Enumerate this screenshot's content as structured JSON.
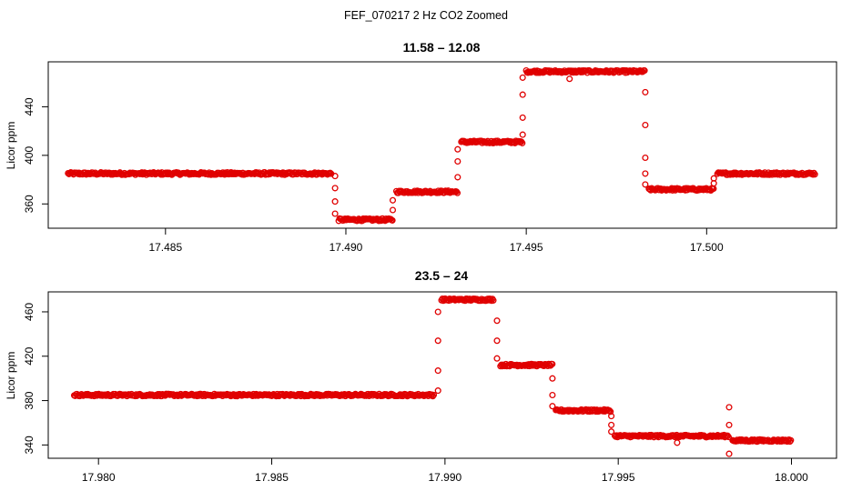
{
  "figure": {
    "title": "FEF_070217  2 Hz CO2 Zoomed"
  },
  "chart_data": [
    {
      "type": "scatter",
      "title": "11.58 – 12.08",
      "xlabel": "",
      "ylabel": "Licor ppm",
      "xlim": [
        17.48175,
        17.5036
      ],
      "ylim": [
        340,
        477
      ],
      "xticks": [
        "17.485",
        "17.490",
        "17.495",
        "17.500"
      ],
      "xtick_values": [
        17.485,
        17.49,
        17.495,
        17.5
      ],
      "yticks": [
        "360",
        "400",
        "440"
      ],
      "ytick_values": [
        360,
        400,
        440
      ],
      "point_color": "#e00000",
      "grid": false,
      "legend": "none",
      "segments": [
        {
          "x_start": 17.4823,
          "x_end": 17.4896,
          "y": 385
        },
        {
          "x_start": 17.4898,
          "x_end": 17.4913,
          "y": 347
        },
        {
          "x_start": 17.4914,
          "x_end": 17.4931,
          "y": 370
        },
        {
          "x_start": 17.4932,
          "x_end": 17.4949,
          "y": 411
        },
        {
          "x_start": 17.495,
          "x_end": 17.4983,
          "y": 469
        },
        {
          "x_start": 17.4984,
          "x_end": 17.5002,
          "y": 372
        },
        {
          "x_start": 17.5003,
          "x_end": 17.503,
          "y": 385
        }
      ],
      "transitions": [
        {
          "x": 17.4897,
          "y": [
            383,
            373,
            362,
            352
          ]
        },
        {
          "x": 17.4913,
          "y": [
            355,
            363
          ]
        },
        {
          "x": 17.4931,
          "y": [
            382,
            395,
            405
          ]
        },
        {
          "x": 17.4949,
          "y": [
            417,
            431,
            450,
            464
          ]
        },
        {
          "x": 17.4983,
          "y": [
            452,
            425,
            398,
            385,
            376
          ]
        },
        {
          "x": 17.5002,
          "y": [
            377,
            381
          ]
        },
        {
          "x": 17.4962,
          "y": [
            463
          ]
        }
      ]
    },
    {
      "type": "scatter",
      "title": "23.5 – 24",
      "xlabel": "",
      "ylabel": "Licor ppm",
      "xlim": [
        17.97855,
        18.0013
      ],
      "ylim": [
        328,
        478
      ],
      "xticks": [
        "17.980",
        "17.985",
        "17.990",
        "17.995",
        "18.000"
      ],
      "xtick_values": [
        17.98,
        17.985,
        17.99,
        17.995,
        18.0
      ],
      "yticks": [
        "340",
        "380",
        "420",
        "460"
      ],
      "ytick_values": [
        340,
        380,
        420,
        460
      ],
      "point_color": "#e00000",
      "grid": false,
      "legend": "none",
      "segments": [
        {
          "x_start": 17.9793,
          "x_end": 17.9897,
          "y": 385
        },
        {
          "x_start": 17.9899,
          "x_end": 17.9914,
          "y": 471
        },
        {
          "x_start": 17.9916,
          "x_end": 17.9931,
          "y": 412
        },
        {
          "x_start": 17.9932,
          "x_end": 17.9948,
          "y": 371
        },
        {
          "x_start": 17.9949,
          "x_end": 17.9982,
          "y": 348
        },
        {
          "x_start": 17.9983,
          "x_end": 18.0,
          "y": 344
        }
      ],
      "transitions": [
        {
          "x": 17.9898,
          "y": [
            389,
            407,
            434,
            460
          ]
        },
        {
          "x": 17.9915,
          "y": [
            452,
            434,
            418
          ]
        },
        {
          "x": 17.9931,
          "y": [
            400,
            385,
            375
          ]
        },
        {
          "x": 17.9948,
          "y": [
            366,
            358,
            352
          ]
        },
        {
          "x": 17.9982,
          "y": [
            374,
            358,
            332
          ]
        },
        {
          "x": 17.9967,
          "y": [
            342
          ]
        }
      ]
    }
  ]
}
